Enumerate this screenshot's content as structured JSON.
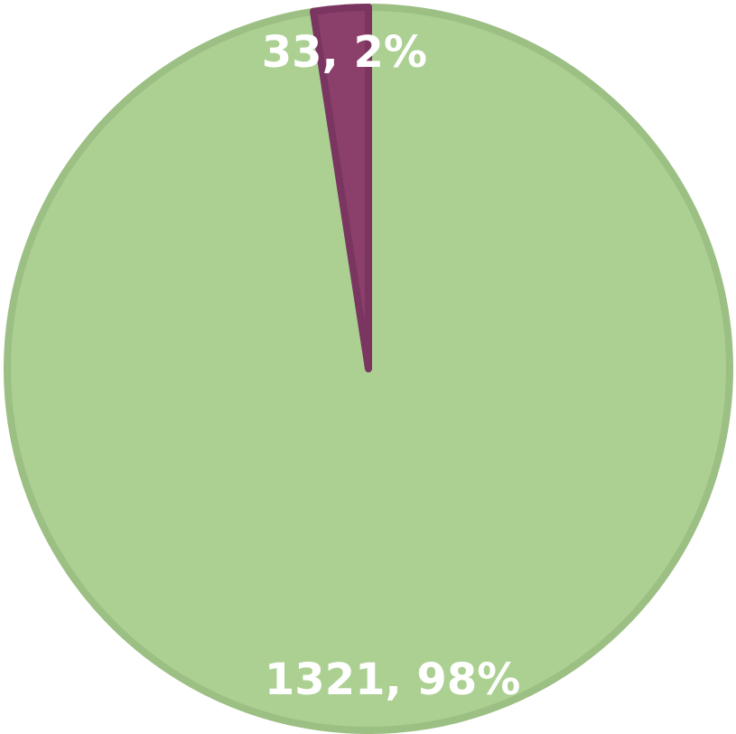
{
  "chart_data": {
    "type": "pie",
    "values": [
      1321,
      33
    ],
    "value_labels": [
      "1321, 98%",
      "33, 2%"
    ],
    "colors": [
      "#acd092",
      "#8b3f6b"
    ],
    "stroke_colors": [
      "#9cbf84",
      "#7a3560"
    ]
  }
}
